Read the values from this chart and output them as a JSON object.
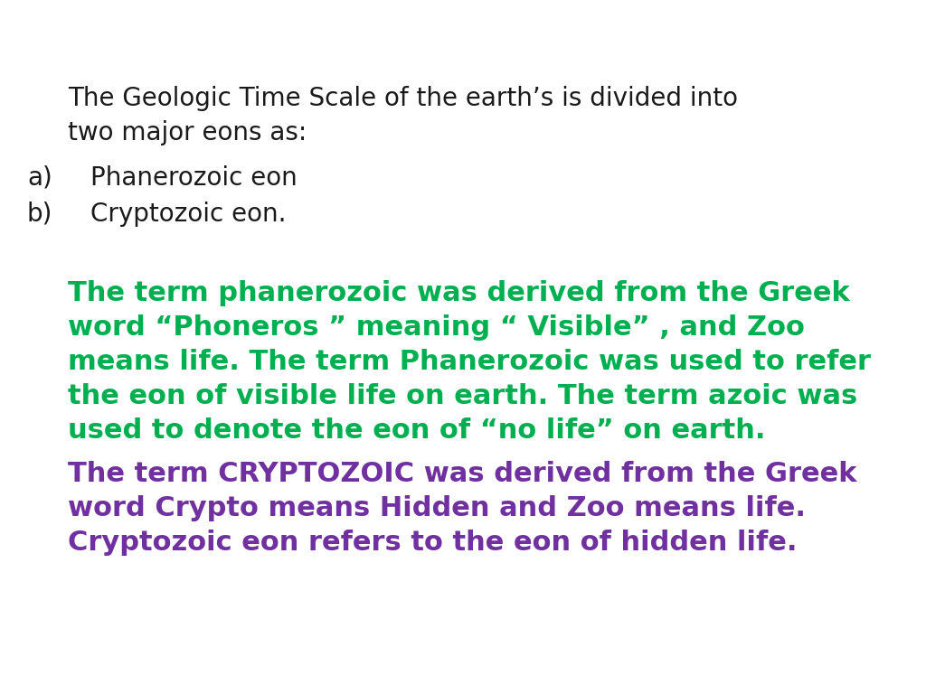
{
  "background_color": "#ffffff",
  "intro_line1": "The Geologic Time Scale of the earth’s is divided into",
  "intro_line2": "two major eons as:",
  "item_a_label": "a)",
  "item_a_text": "Phanerozoic eon",
  "item_b_label": "b)",
  "item_b_text": "Cryptozoic eon.",
  "green_lines": [
    "The term phanerozoic was derived from the Greek",
    "word “Phoneros ” meaning “ Visible” , and Zoo",
    "means life. The term Phanerozoic was used to refer",
    "the eon of visible life on earth. The term azoic was",
    "used to denote the eon of “no life” on earth."
  ],
  "purple_lines": [
    "The term CRYPTOZOIC was derived from the Greek",
    "word Crypto means Hidden and Zoo means life.",
    "Cryptozoic eon refers to the eon of hidden life."
  ],
  "black_color": "#1a1a1a",
  "green_color": "#00b050",
  "purple_color": "#7030A0",
  "intro_fontsize": 20,
  "list_fontsize": 20,
  "para_fontsize": 22,
  "fig_width": 10.24,
  "fig_height": 7.68,
  "dpi": 100
}
